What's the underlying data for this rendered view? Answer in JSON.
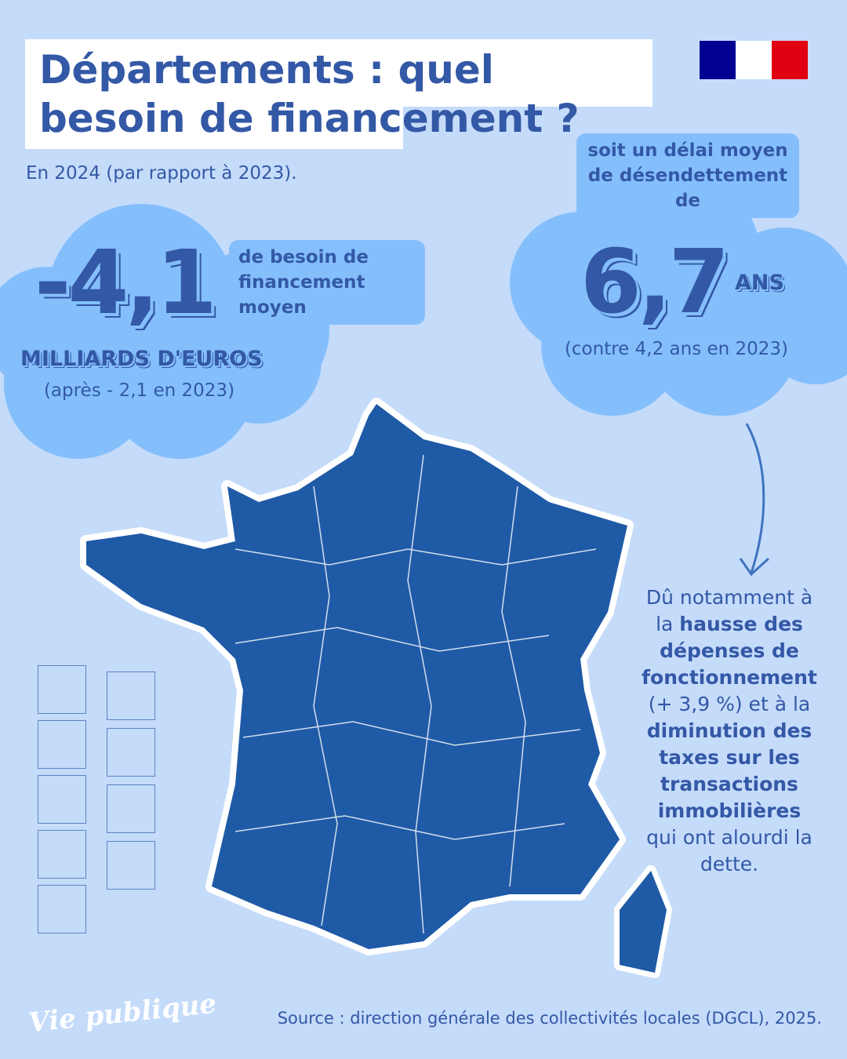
{
  "header": {
    "title": "Départements : quel besoin de financement ?",
    "subtitle": "En 2024 (par rapport à 2023)."
  },
  "flag": {
    "colors": [
      "#000091",
      "#ffffff",
      "#e1000f"
    ],
    "label": "République française logo"
  },
  "stat1": {
    "value": "-4,1",
    "label": "de besoin de financement moyen",
    "unit": "MILLIARDS D'EUROS",
    "comparison": "(après - 2,1 en 2023)"
  },
  "stat2": {
    "intro": "soit un délai moyen de désendettement de",
    "value": "6,7",
    "unit": "ANS",
    "comparison": "(contre 4,2 ans en 2023)"
  },
  "explanation": {
    "p1": "Dû notamment à la ",
    "b1": "hausse des dépenses de fonctionnement",
    "p2": " (+ 3,9 %) et à la ",
    "b2": "diminution des taxes sur les transactions immobilières",
    "p3": " qui ont alourdi la dette."
  },
  "footer": {
    "logo": "Vie publique",
    "source": "Source : direction générale des collectivités locales (DGCL), 2025."
  },
  "colors": {
    "background": "#c5dbfa",
    "cloud": "#84bffc",
    "text": "#3358a6",
    "map": "#1f5aa6"
  }
}
